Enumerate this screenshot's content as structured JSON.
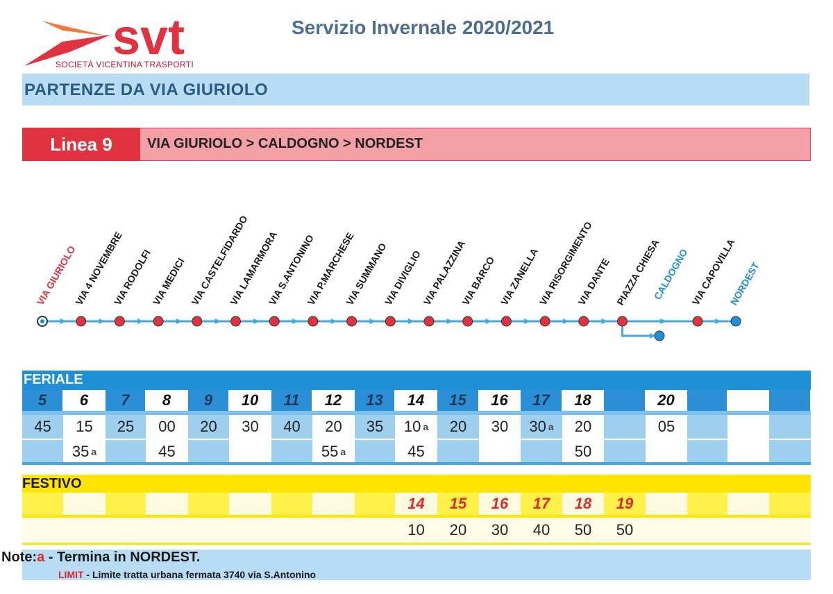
{
  "header": {
    "logo_text": "svt",
    "logo_subtitle": "SOCIETÀ VICENTINA TRASPORTI",
    "title": "Servizio Invernale 2020/2021",
    "section_title": "PARTENZE DA VIA GIURIOLO"
  },
  "line": {
    "label": "Linea 9",
    "route": "VIA GIURIOLO > CALDOGNO > NORDEST"
  },
  "colors": {
    "route_line": "#3fa9e0",
    "stop_red": "#e0323f",
    "stop_blue": "#1f8fd6",
    "start_label": "#e0323f",
    "branch_label": "#1f8fd6"
  },
  "stops": [
    {
      "name": "VIA GIURIOLO",
      "kind": "start"
    },
    {
      "name": "VIA 4 NOVEMBRE",
      "kind": "normal"
    },
    {
      "name": "VIA RODOLFI",
      "kind": "normal"
    },
    {
      "name": "VIA MEDICI",
      "kind": "normal"
    },
    {
      "name": "VIA CASTELFIDARDO",
      "kind": "normal"
    },
    {
      "name": "VIA LAMARMORA",
      "kind": "normal"
    },
    {
      "name": "VIA S.ANTONINO",
      "kind": "normal"
    },
    {
      "name": "VIA P.MARCHESE",
      "kind": "normal"
    },
    {
      "name": "VIA SUMMANO",
      "kind": "normal"
    },
    {
      "name": "VIA DIVIGLIO",
      "kind": "normal"
    },
    {
      "name": "VIA PALAZZINA",
      "kind": "normal"
    },
    {
      "name": "VIA BARCO",
      "kind": "normal"
    },
    {
      "name": "VIA ZANELLA",
      "kind": "normal"
    },
    {
      "name": "VIA RISORGIMENTO",
      "kind": "normal"
    },
    {
      "name": "VIA DANTE",
      "kind": "normal"
    },
    {
      "name": "PIAZZA CHIESA",
      "kind": "normal"
    },
    {
      "name": "CALDOGNO",
      "kind": "branch-terminus"
    },
    {
      "name": "VIA CAPOVILLA",
      "kind": "normal"
    },
    {
      "name": "NORDEST",
      "kind": "terminus"
    }
  ],
  "feriale": {
    "title": "FERIALE",
    "columns": [
      {
        "hour": "5",
        "minutes": [
          {
            "m": "45",
            "a": ""
          }
        ]
      },
      {
        "hour": "6",
        "minutes": [
          {
            "m": "15",
            "a": ""
          },
          {
            "m": "35",
            "a": "a"
          }
        ]
      },
      {
        "hour": "7",
        "minutes": [
          {
            "m": "25",
            "a": ""
          }
        ]
      },
      {
        "hour": "8",
        "minutes": [
          {
            "m": "00",
            "a": ""
          },
          {
            "m": "45",
            "a": ""
          }
        ]
      },
      {
        "hour": "9",
        "minutes": [
          {
            "m": "20",
            "a": ""
          }
        ]
      },
      {
        "hour": "10",
        "minutes": [
          {
            "m": "30",
            "a": ""
          }
        ]
      },
      {
        "hour": "11",
        "minutes": [
          {
            "m": "40",
            "a": ""
          }
        ]
      },
      {
        "hour": "12",
        "minutes": [
          {
            "m": "20",
            "a": ""
          },
          {
            "m": "55",
            "a": "a"
          }
        ]
      },
      {
        "hour": "13",
        "minutes": [
          {
            "m": "35",
            "a": ""
          }
        ]
      },
      {
        "hour": "14",
        "minutes": [
          {
            "m": "10",
            "a": "a"
          },
          {
            "m": "45",
            "a": ""
          }
        ]
      },
      {
        "hour": "15",
        "minutes": [
          {
            "m": "20",
            "a": ""
          }
        ]
      },
      {
        "hour": "16",
        "minutes": [
          {
            "m": "30",
            "a": ""
          }
        ]
      },
      {
        "hour": "17",
        "minutes": [
          {
            "m": "30",
            "a": "a"
          }
        ]
      },
      {
        "hour": "18",
        "minutes": [
          {
            "m": "20",
            "a": ""
          },
          {
            "m": "50",
            "a": ""
          }
        ]
      },
      {
        "hour": "",
        "minutes": []
      },
      {
        "hour": "20",
        "minutes": [
          {
            "m": "05",
            "a": ""
          }
        ]
      },
      {
        "hour": "",
        "minutes": []
      },
      {
        "hour": "",
        "minutes": []
      },
      {
        "hour": "",
        "minutes": []
      }
    ]
  },
  "festivo": {
    "title": "FESTIVO",
    "columns": [
      {
        "hour": "",
        "minute": ""
      },
      {
        "hour": "",
        "minute": ""
      },
      {
        "hour": "",
        "minute": ""
      },
      {
        "hour": "",
        "minute": ""
      },
      {
        "hour": "",
        "minute": ""
      },
      {
        "hour": "",
        "minute": ""
      },
      {
        "hour": "",
        "minute": ""
      },
      {
        "hour": "",
        "minute": ""
      },
      {
        "hour": "",
        "minute": ""
      },
      {
        "hour": "14",
        "minute": "10"
      },
      {
        "hour": "15",
        "minute": "20"
      },
      {
        "hour": "16",
        "minute": "30"
      },
      {
        "hour": "17",
        "minute": "40"
      },
      {
        "hour": "18",
        "minute": "50"
      },
      {
        "hour": "19",
        "minute": "50"
      },
      {
        "hour": "",
        "minute": ""
      },
      {
        "hour": "",
        "minute": ""
      },
      {
        "hour": "",
        "minute": ""
      },
      {
        "hour": "",
        "minute": ""
      }
    ]
  },
  "notes": {
    "prefix": "Note:",
    "a_key": "a",
    "a_text": " - Termina in NORDEST.",
    "limit_key": "LIMIT",
    "limit_text": " -  Limite tratta urbana fermata 3740 via S.Antonino"
  }
}
